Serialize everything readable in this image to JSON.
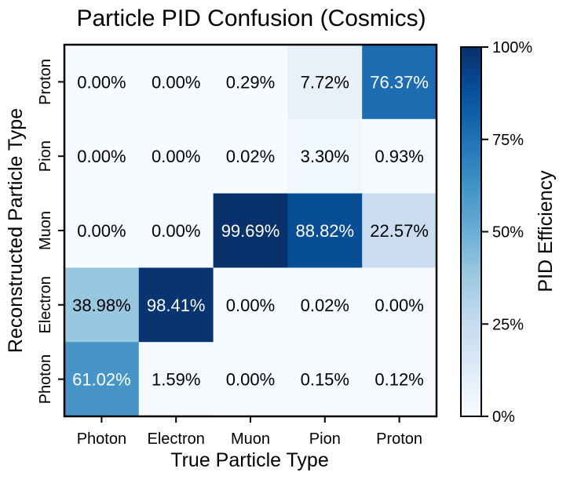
{
  "chart_data": {
    "type": "heatmap",
    "title": "Particle PID Confusion (Cosmics)",
    "xlabel": "True Particle Type",
    "ylabel": "Reconstructed Particle Type",
    "x_categories": [
      "Photon",
      "Electron",
      "Muon",
      "Pion",
      "Proton"
    ],
    "y_categories": [
      "Proton",
      "Pion",
      "Muon",
      "Electron",
      "Photon"
    ],
    "values": [
      [
        0.0,
        0.0,
        0.29,
        7.72,
        76.37
      ],
      [
        0.0,
        0.0,
        0.02,
        3.3,
        0.93
      ],
      [
        0.0,
        0.0,
        99.69,
        88.82,
        22.57
      ],
      [
        38.98,
        98.41,
        0.0,
        0.02,
        0.0
      ],
      [
        61.02,
        1.59,
        0.0,
        0.15,
        0.12
      ]
    ],
    "value_suffix": "%",
    "colormap": "Blues",
    "colorbar": {
      "label": "PID Efficiency",
      "range": [
        0,
        100
      ],
      "ticks": [
        0,
        25,
        50,
        75,
        100
      ],
      "tick_labels": [
        "0%",
        "25%",
        "50%",
        "75%",
        "100%"
      ]
    }
  }
}
